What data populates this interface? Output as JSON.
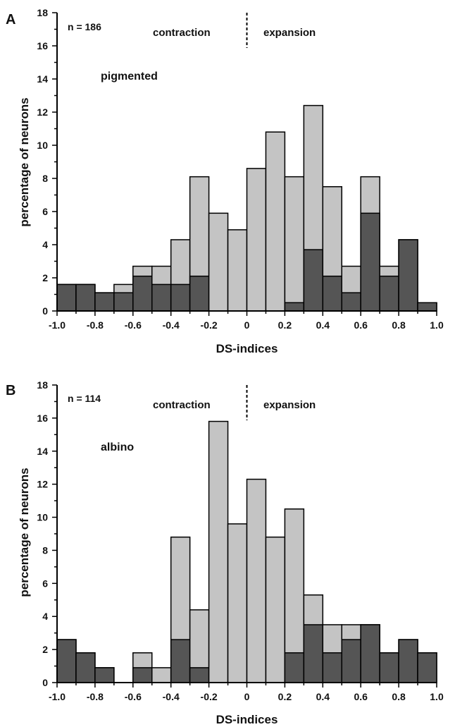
{
  "colors": {
    "light": "#c4c4c4",
    "dark": "#555555",
    "stroke": "#000000"
  },
  "chart_data": [
    {
      "type": "bar",
      "panel_label": "A",
      "annotation_n": "n = 186",
      "annotation_left": "contraction",
      "annotation_right": "expansion",
      "group_label": "pigmented",
      "xlabel": "DS-indices",
      "ylabel": "percentage of neurons",
      "xlim": [
        -1.0,
        1.0
      ],
      "ylim": [
        0,
        18
      ],
      "bin_width": 0.1,
      "x_tick_labels": [
        "-1.0",
        "-0.8",
        "-0.6",
        "-0.4",
        "-0.2",
        "0",
        "0.2",
        "0.4",
        "0.6",
        "0.8",
        "1.0"
      ],
      "y_tick_labels": [
        "0",
        "2",
        "4",
        "6",
        "8",
        "10",
        "12",
        "14",
        "16",
        "18"
      ],
      "bin_starts": [
        -1.0,
        -0.9,
        -0.8,
        -0.7,
        -0.6,
        -0.5,
        -0.4,
        -0.3,
        -0.2,
        -0.1,
        0.0,
        0.1,
        0.2,
        0.3,
        0.4,
        0.5,
        0.6,
        0.7,
        0.8,
        0.9
      ],
      "series": [
        {
          "values": [
            1.6,
            1.6,
            1.1,
            1.6,
            2.7,
            2.7,
            4.3,
            8.1,
            5.9,
            4.9,
            8.6,
            10.8,
            8.1,
            12.4,
            7.5,
            2.7,
            8.1,
            2.7,
            4.3,
            0.5
          ]
        },
        {
          "values": [
            1.6,
            1.6,
            1.1,
            1.1,
            2.1,
            1.6,
            1.6,
            2.1,
            0,
            0,
            0,
            0,
            0.5,
            3.7,
            2.1,
            1.1,
            5.9,
            2.1,
            4.3,
            0.5
          ]
        }
      ]
    },
    {
      "type": "bar",
      "panel_label": "B",
      "annotation_n": "n = 114",
      "annotation_left": "contraction",
      "annotation_right": "expansion",
      "group_label": "albino",
      "xlabel": "DS-indices",
      "ylabel": "percentage of neurons",
      "xlim": [
        -1.0,
        1.0
      ],
      "ylim": [
        0,
        18
      ],
      "bin_width": 0.1,
      "x_tick_labels": [
        "-1.0",
        "-0.8",
        "-0.6",
        "-0.4",
        "-0.2",
        "0",
        "0.2",
        "0.4",
        "0.6",
        "0.8",
        "1.0"
      ],
      "y_tick_labels": [
        "0",
        "2",
        "4",
        "6",
        "8",
        "10",
        "12",
        "14",
        "16",
        "18"
      ],
      "bin_starts": [
        -1.0,
        -0.9,
        -0.8,
        -0.7,
        -0.6,
        -0.5,
        -0.4,
        -0.3,
        -0.2,
        -0.1,
        0.0,
        0.1,
        0.2,
        0.3,
        0.4,
        0.5,
        0.6,
        0.7,
        0.8,
        0.9
      ],
      "series": [
        {
          "values": [
            2.6,
            1.8,
            0.9,
            0,
            1.8,
            0.9,
            8.8,
            4.4,
            15.8,
            9.6,
            12.3,
            8.8,
            10.5,
            5.3,
            3.5,
            3.5,
            3.5,
            1.8,
            2.6,
            1.8
          ]
        },
        {
          "values": [
            2.6,
            1.8,
            0.9,
            0,
            0.9,
            0,
            2.6,
            0.9,
            0,
            0,
            0,
            0,
            1.8,
            3.5,
            1.8,
            2.6,
            3.5,
            1.8,
            2.6,
            1.8
          ]
        }
      ]
    }
  ]
}
